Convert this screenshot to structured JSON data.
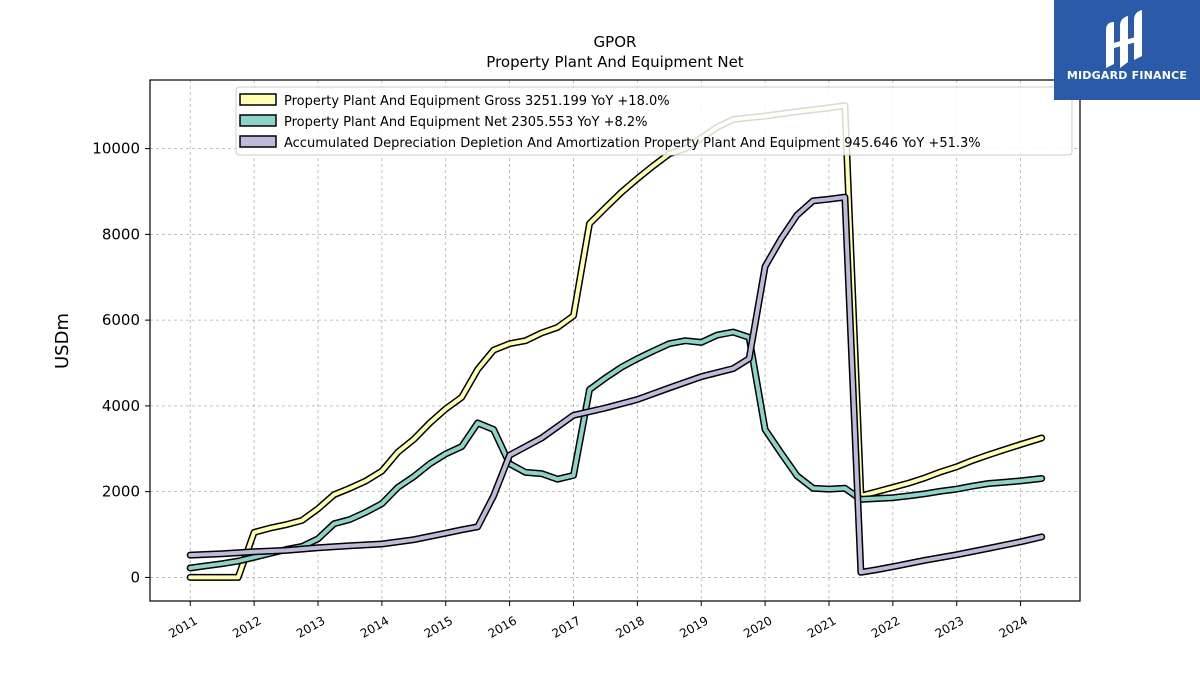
{
  "brand": {
    "name": "MIDGARD FINANCE",
    "color": "#2b5aa8"
  },
  "chart_data": {
    "type": "line",
    "title": "GPOR",
    "subtitle": "Property Plant And Equipment Net",
    "ylabel": "USDm",
    "xlabel": "",
    "ylim": [
      -550,
      11600
    ],
    "xlim": [
      2010.37,
      2024.93
    ],
    "yticks": [
      0,
      2000,
      4000,
      6000,
      8000,
      10000
    ],
    "xticks": [
      2011,
      2012,
      2013,
      2014,
      2015,
      2016,
      2017,
      2018,
      2019,
      2020,
      2021,
      2022,
      2023,
      2024
    ],
    "grid": true,
    "legend_position": "top",
    "series": [
      {
        "name": "Property Plant And Equipment Gross  3251.199 YoY +18.0%",
        "color": "#ffffb3",
        "points": [
          [
            2011.0,
            0
          ],
          [
            2011.25,
            0
          ],
          [
            2011.5,
            0
          ],
          [
            2011.75,
            0
          ],
          [
            2012.0,
            1050
          ],
          [
            2012.25,
            1150
          ],
          [
            2012.5,
            1230
          ],
          [
            2012.75,
            1330
          ],
          [
            2013.0,
            1600
          ],
          [
            2013.25,
            1930
          ],
          [
            2013.5,
            2080
          ],
          [
            2013.75,
            2250
          ],
          [
            2014.0,
            2480
          ],
          [
            2014.25,
            2920
          ],
          [
            2014.5,
            3220
          ],
          [
            2014.75,
            3600
          ],
          [
            2015.0,
            3930
          ],
          [
            2015.25,
            4200
          ],
          [
            2015.5,
            4850
          ],
          [
            2015.75,
            5300
          ],
          [
            2016.0,
            5450
          ],
          [
            2016.25,
            5520
          ],
          [
            2016.5,
            5700
          ],
          [
            2016.75,
            5830
          ],
          [
            2017.0,
            6100
          ],
          [
            2017.25,
            8250
          ],
          [
            2017.5,
            8620
          ],
          [
            2017.75,
            8980
          ],
          [
            2018.0,
            9300
          ],
          [
            2018.25,
            9600
          ],
          [
            2018.5,
            9880
          ],
          [
            2018.75,
            10000
          ],
          [
            2019.0,
            10250
          ],
          [
            2019.25,
            10500
          ],
          [
            2019.5,
            10680
          ],
          [
            2019.75,
            10720
          ],
          [
            2020.0,
            10760
          ],
          [
            2020.5,
            10860
          ],
          [
            2021.0,
            10950
          ],
          [
            2021.25,
            11000
          ],
          [
            2021.5,
            1900
          ],
          [
            2021.75,
            2000
          ],
          [
            2022.0,
            2100
          ],
          [
            2022.25,
            2200
          ],
          [
            2022.5,
            2320
          ],
          [
            2022.75,
            2460
          ],
          [
            2023.0,
            2580
          ],
          [
            2023.25,
            2730
          ],
          [
            2023.5,
            2860
          ],
          [
            2023.75,
            2980
          ],
          [
            2024.0,
            3100
          ],
          [
            2024.33,
            3251
          ]
        ]
      },
      {
        "name": "Property Plant And Equipment Net  2305.553 YoY +8.2%",
        "color": "#8dd3c7",
        "points": [
          [
            2011.0,
            220
          ],
          [
            2011.25,
            270
          ],
          [
            2011.5,
            320
          ],
          [
            2011.75,
            380
          ],
          [
            2012.0,
            470
          ],
          [
            2012.25,
            560
          ],
          [
            2012.5,
            650
          ],
          [
            2012.75,
            720
          ],
          [
            2013.0,
            900
          ],
          [
            2013.25,
            1250
          ],
          [
            2013.5,
            1350
          ],
          [
            2013.75,
            1520
          ],
          [
            2014.0,
            1720
          ],
          [
            2014.25,
            2100
          ],
          [
            2014.5,
            2350
          ],
          [
            2014.75,
            2650
          ],
          [
            2015.0,
            2880
          ],
          [
            2015.25,
            3050
          ],
          [
            2015.5,
            3600
          ],
          [
            2015.75,
            3450
          ],
          [
            2016.0,
            2650
          ],
          [
            2016.25,
            2450
          ],
          [
            2016.5,
            2420
          ],
          [
            2016.75,
            2290
          ],
          [
            2017.0,
            2380
          ],
          [
            2017.25,
            4380
          ],
          [
            2017.5,
            4650
          ],
          [
            2017.75,
            4900
          ],
          [
            2018.0,
            5100
          ],
          [
            2018.25,
            5280
          ],
          [
            2018.5,
            5450
          ],
          [
            2018.75,
            5520
          ],
          [
            2019.0,
            5480
          ],
          [
            2019.25,
            5650
          ],
          [
            2019.5,
            5720
          ],
          [
            2019.75,
            5600
          ],
          [
            2020.0,
            3450
          ],
          [
            2020.25,
            2900
          ],
          [
            2020.5,
            2370
          ],
          [
            2020.75,
            2080
          ],
          [
            2021.0,
            2060
          ],
          [
            2021.25,
            2080
          ],
          [
            2021.5,
            1820
          ],
          [
            2021.75,
            1840
          ],
          [
            2022.0,
            1860
          ],
          [
            2022.25,
            1900
          ],
          [
            2022.5,
            1950
          ],
          [
            2022.75,
            2010
          ],
          [
            2023.0,
            2060
          ],
          [
            2023.25,
            2130
          ],
          [
            2023.5,
            2190
          ],
          [
            2023.75,
            2220
          ],
          [
            2024.0,
            2250
          ],
          [
            2024.33,
            2306
          ]
        ]
      },
      {
        "name": "Accumulated Depreciation Depletion And Amortization Property Plant And Equipment  945.646 YoY +51.3%",
        "color": "#bebada",
        "points": [
          [
            2011.0,
            520
          ],
          [
            2011.5,
            550
          ],
          [
            2012.0,
            600
          ],
          [
            2012.5,
            630
          ],
          [
            2013.0,
            690
          ],
          [
            2013.5,
            740
          ],
          [
            2014.0,
            780
          ],
          [
            2014.5,
            880
          ],
          [
            2015.0,
            1030
          ],
          [
            2015.25,
            1110
          ],
          [
            2015.5,
            1180
          ],
          [
            2015.75,
            1900
          ],
          [
            2016.0,
            2850
          ],
          [
            2016.5,
            3250
          ],
          [
            2017.0,
            3780
          ],
          [
            2017.5,
            3950
          ],
          [
            2018.0,
            4150
          ],
          [
            2018.5,
            4420
          ],
          [
            2019.0,
            4680
          ],
          [
            2019.5,
            4870
          ],
          [
            2019.75,
            5100
          ],
          [
            2020.0,
            7250
          ],
          [
            2020.25,
            7900
          ],
          [
            2020.5,
            8450
          ],
          [
            2020.75,
            8780
          ],
          [
            2021.0,
            8820
          ],
          [
            2021.25,
            8870
          ],
          [
            2021.5,
            120
          ],
          [
            2021.75,
            180
          ],
          [
            2022.0,
            250
          ],
          [
            2022.5,
            400
          ],
          [
            2023.0,
            530
          ],
          [
            2023.5,
            680
          ],
          [
            2024.0,
            830
          ],
          [
            2024.33,
            946
          ]
        ]
      }
    ]
  }
}
